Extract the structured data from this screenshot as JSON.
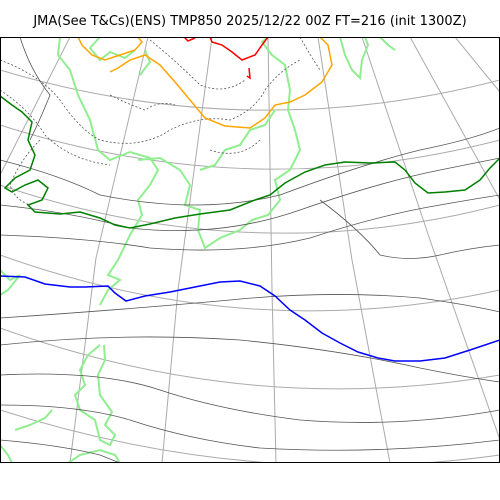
{
  "title": "JMA(See T&Cs)(ENS) TMP850 2025/12/22 00Z FT=216 (init 1300Z)",
  "colors": {
    "frame": "#000000",
    "graticule": "#aaaaaa",
    "coastline": "#90ee90",
    "isotherm_minor": "#555555",
    "isotherm_warm": "#ff0000",
    "isotherm_orange": "#ffa500",
    "isotherm_green": "#008000",
    "isotherm_blue": "#0000ff"
  }
}
